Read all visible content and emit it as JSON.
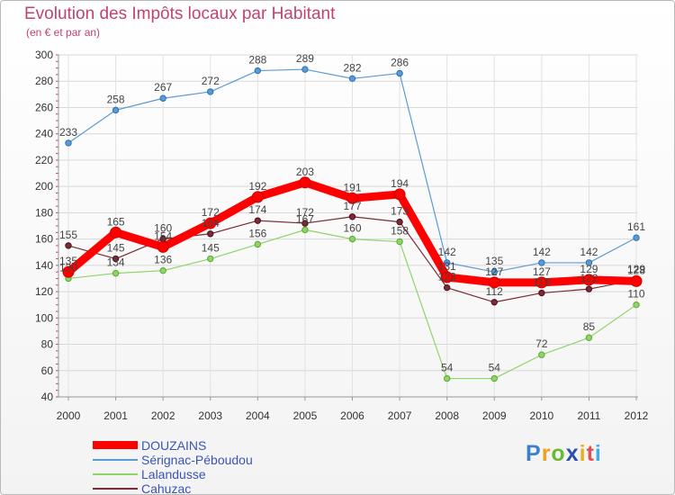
{
  "title": "Evolution des Impôts locaux par Habitant",
  "subtitle": "(en € et par an)",
  "brand": {
    "text": "Proxiti",
    "colors": [
      "#3a7fd0",
      "#f0a020",
      "#66bb33",
      "#2a4fb0",
      "#e8b020",
      "#e05050",
      "#44aaee"
    ]
  },
  "chart_data": {
    "type": "line",
    "title": "Evolution des Impôts locaux par Habitant",
    "subtitle": "(en € et par an)",
    "xlabel": "",
    "ylabel": "",
    "ylim": [
      40,
      300
    ],
    "yticks": [
      40,
      60,
      80,
      100,
      120,
      140,
      160,
      180,
      200,
      220,
      240,
      260,
      280,
      300
    ],
    "categories": [
      "2000",
      "2001",
      "2002",
      "2003",
      "2004",
      "2005",
      "2006",
      "2007",
      "2008",
      "2009",
      "2010",
      "2011",
      "2012"
    ],
    "grid": true,
    "legend_position": "bottom-left",
    "series": [
      {
        "name": "DOUZAINS",
        "color": "#ff0000",
        "values": [
          135,
          165,
          154,
          172,
          192,
          203,
          191,
          194,
          131,
          127,
          127,
          129,
          128
        ],
        "labels": [
          "135",
          "165",
          "154",
          "172",
          "192",
          "203",
          "191",
          "194",
          "131",
          "127",
          "127",
          "129",
          "128"
        ]
      },
      {
        "name": "Sérignac-Péboudou",
        "color": "#5b9bd5",
        "values": [
          233,
          258,
          267,
          272,
          288,
          289,
          282,
          286,
          142,
          135,
          142,
          142,
          161
        ],
        "labels": [
          "233",
          "258",
          "267",
          "272",
          "288",
          "289",
          "282",
          "286",
          "142",
          "135",
          "142",
          "142",
          "161"
        ]
      },
      {
        "name": "Lalandusse",
        "color": "#8fd468",
        "values": [
          130,
          134,
          136,
          145,
          156,
          167,
          160,
          158,
          54,
          54,
          72,
          85,
          110
        ],
        "labels": [
          "130",
          "134",
          "136",
          "145",
          "156",
          "167",
          "160",
          "158",
          "54",
          "54",
          "72",
          "85",
          "110"
        ]
      },
      {
        "name": "Cahuzac",
        "color": "#7b2b36",
        "values": [
          155,
          145,
          160,
          164,
          174,
          172,
          177,
          173,
          123,
          112,
          119,
          122,
          129
        ],
        "labels": [
          "155",
          "145",
          "160",
          "164",
          "174",
          "172",
          "177",
          "173",
          "123",
          "112",
          "119",
          "122",
          "129"
        ]
      }
    ]
  }
}
